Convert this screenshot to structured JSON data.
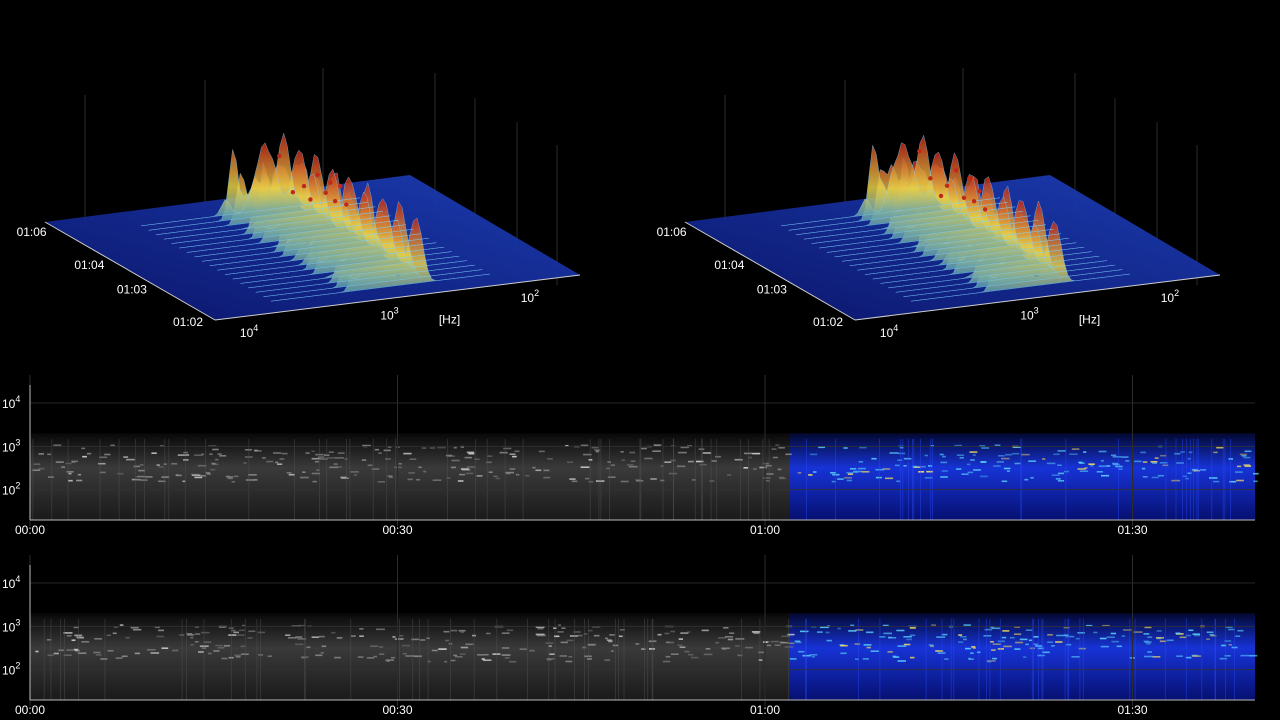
{
  "colors": {
    "background": "#000000",
    "axis": "#ffffff",
    "surface_low": "#0a1a8a",
    "surface_mid": "#2f8fd8",
    "surface_high": "#c0281a",
    "spec_played": "#6a6a6a",
    "spec_playing": "#1733d6"
  },
  "chart_data": [
    {
      "type": "surface3d",
      "time_ticks": [
        "01:02",
        "01:03",
        "01:04",
        "01:06"
      ],
      "freq_ticks": [
        {
          "base": "10",
          "exp": "4"
        },
        {
          "base": "10",
          "exp": "3"
        },
        {
          "base": "10",
          "exp": "2"
        }
      ],
      "freq_unit": "[Hz]",
      "peak_freq_hz": [
        1500,
        1200,
        1000,
        900,
        800,
        700,
        650,
        600,
        550,
        500
      ],
      "peak_height": [
        0.95,
        0.55,
        0.6,
        0.45,
        0.7,
        0.5,
        0.6,
        0.4,
        0.55,
        0.35
      ]
    },
    {
      "type": "surface3d",
      "time_ticks": [
        "01:02",
        "01:03",
        "01:04",
        "01:06"
      ],
      "freq_ticks": [
        {
          "base": "10",
          "exp": "4"
        },
        {
          "base": "10",
          "exp": "3"
        },
        {
          "base": "10",
          "exp": "2"
        }
      ],
      "freq_unit": "[Hz]",
      "peak_freq_hz": [
        1500,
        1250,
        1050,
        950,
        820,
        720,
        660,
        610,
        560,
        510
      ],
      "peak_height": [
        1.0,
        0.7,
        0.5,
        0.6,
        0.75,
        0.45,
        0.65,
        0.4,
        0.5,
        0.3
      ]
    },
    {
      "type": "heatmap",
      "x_ticks": [
        "00:00",
        "00:30",
        "01:00",
        "01:30"
      ],
      "x_tick_seconds": [
        0,
        30,
        60,
        90
      ],
      "x_range_seconds": [
        0,
        100
      ],
      "current_time_seconds": 62,
      "y_ticks": [
        {
          "base": "10",
          "exp": "4"
        },
        {
          "base": "10",
          "exp": "3"
        },
        {
          "base": "10",
          "exp": "2"
        }
      ],
      "y_tick_hz": [
        10000,
        1000,
        100
      ],
      "y_range_hz": [
        20,
        20000
      ]
    },
    {
      "type": "heatmap",
      "x_ticks": [
        "00:00",
        "00:30",
        "01:00",
        "01:30"
      ],
      "x_tick_seconds": [
        0,
        30,
        60,
        90
      ],
      "x_range_seconds": [
        0,
        100
      ],
      "current_time_seconds": 62,
      "y_ticks": [
        {
          "base": "10",
          "exp": "4"
        },
        {
          "base": "10",
          "exp": "3"
        },
        {
          "base": "10",
          "exp": "2"
        }
      ],
      "y_tick_hz": [
        10000,
        1000,
        100
      ],
      "y_range_hz": [
        20,
        20000
      ]
    }
  ]
}
